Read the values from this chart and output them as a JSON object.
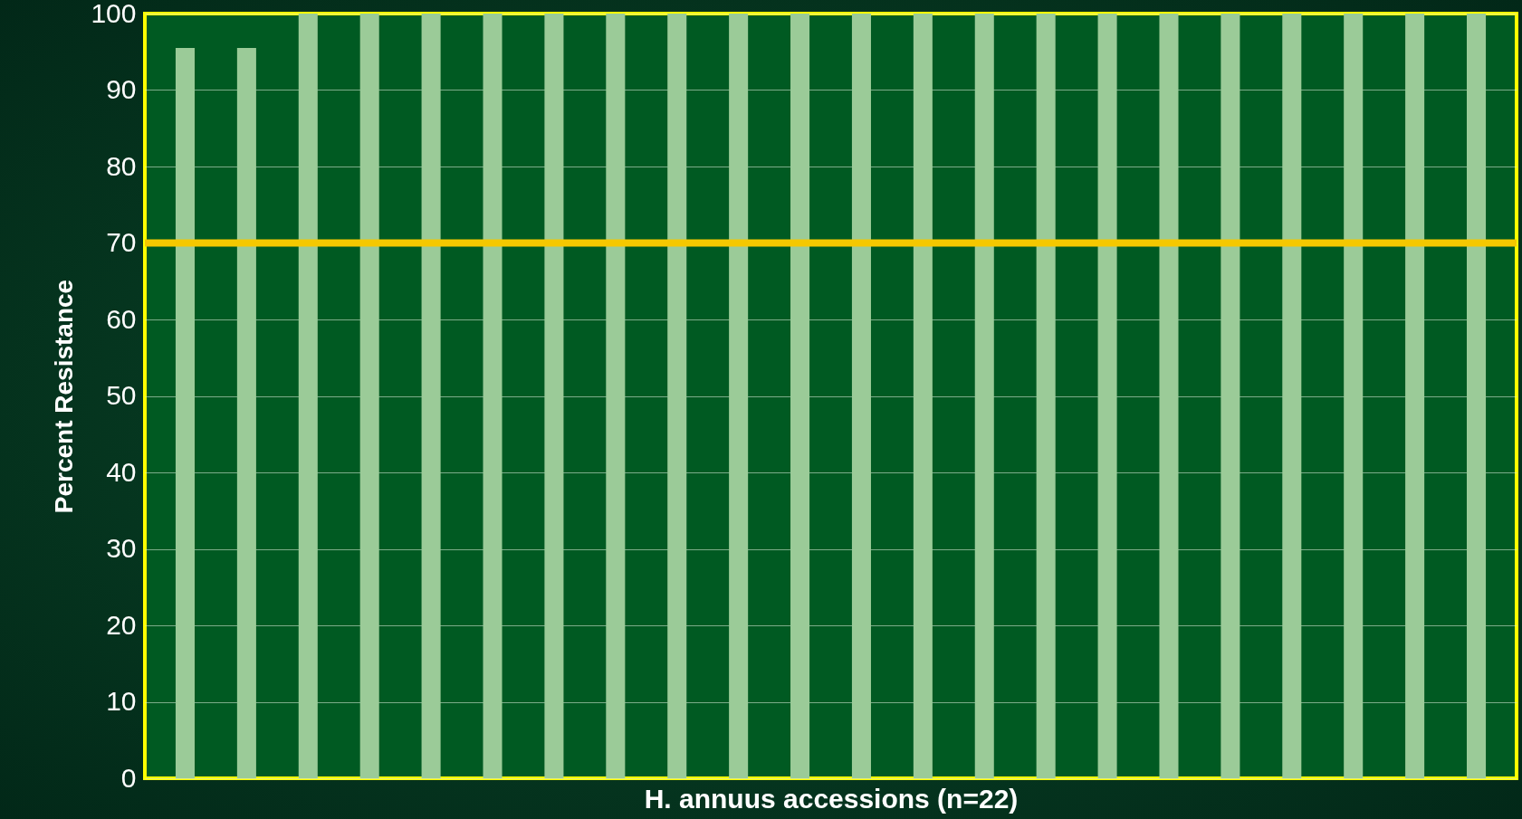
{
  "chart_data": {
    "type": "bar",
    "xlabel": "H. annuus accessions (n=22)",
    "ylabel": "Percent Resistance",
    "categories": [
      null,
      null,
      null,
      null,
      null,
      null,
      null,
      null,
      null,
      null,
      null,
      null,
      null,
      null,
      null,
      null,
      null,
      null,
      null,
      null,
      null,
      null
    ],
    "values": [
      95.5,
      95.5,
      100,
      100,
      100,
      100,
      100,
      100,
      100,
      100,
      100,
      100,
      100,
      100,
      100,
      100,
      100,
      100,
      100,
      100,
      100,
      100
    ],
    "color": "#9bcb98",
    "ylim": [
      0,
      100
    ],
    "yticks": [
      0,
      10,
      20,
      30,
      40,
      50,
      60,
      70,
      80,
      90,
      100
    ],
    "grid": "y",
    "tick_labels": "y",
    "ref_lines": [
      {
        "axis": "y",
        "value": 70,
        "color": "#f5c800"
      }
    ]
  }
}
